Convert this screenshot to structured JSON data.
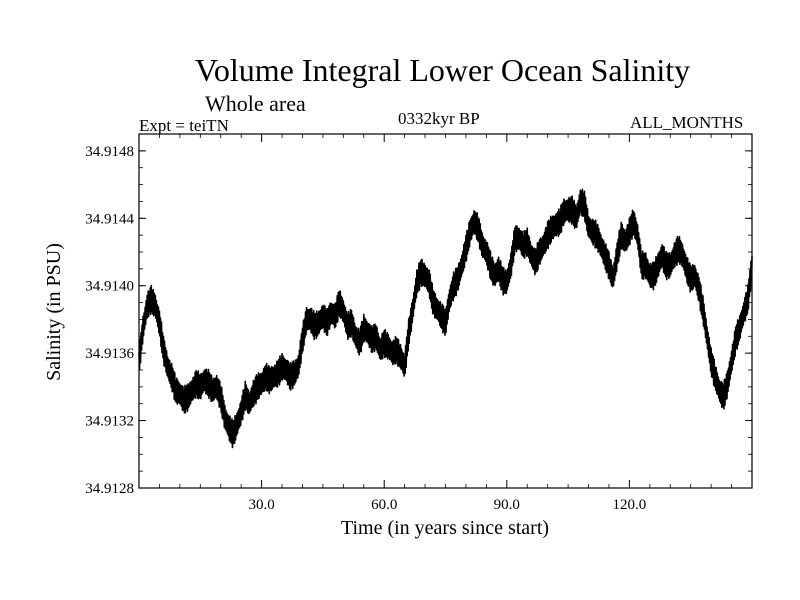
{
  "chart_data": {
    "type": "line",
    "title": "Volume Integral Lower Ocean Salinity",
    "subtitle": "Whole area",
    "left_label": "Expt = teiTN",
    "center_label": "0332kyr BP",
    "right_label": "ALL_MONTHS",
    "xlabel": "Time (in years since start)",
    "ylabel": "Salinity (in PSU)",
    "xlim": [
      0,
      150
    ],
    "ylim": [
      34.9128,
      34.9149
    ],
    "xticks": [
      30,
      60,
      90,
      120
    ],
    "xtick_labels": [
      "30.0",
      "60.0",
      "90.0",
      "120.0"
    ],
    "yticks": [
      34.9128,
      34.9132,
      34.9136,
      34.914,
      34.9144,
      34.9148
    ],
    "ytick_labels": [
      "34.9128",
      "34.9132",
      "34.9136",
      "34.9140",
      "34.9144",
      "34.9148"
    ],
    "grid": false,
    "series": [
      {
        "name": "Salinity",
        "color": "#000000",
        "x": [
          0,
          1,
          2,
          3,
          4,
          5,
          6,
          7,
          8,
          9,
          10,
          11,
          12,
          13,
          14,
          15,
          16,
          17,
          18,
          19,
          20,
          21,
          22,
          23,
          24,
          25,
          26,
          27,
          28,
          29,
          30,
          31,
          32,
          33,
          34,
          35,
          36,
          37,
          38,
          39,
          40,
          41,
          42,
          43,
          44,
          45,
          46,
          47,
          48,
          49,
          50,
          51,
          52,
          53,
          54,
          55,
          56,
          57,
          58,
          59,
          60,
          61,
          62,
          63,
          64,
          65,
          66,
          67,
          68,
          69,
          70,
          71,
          72,
          73,
          74,
          75,
          76,
          77,
          78,
          79,
          80,
          81,
          82,
          83,
          84,
          85,
          86,
          87,
          88,
          89,
          90,
          91,
          92,
          93,
          94,
          95,
          96,
          97,
          98,
          99,
          100,
          101,
          102,
          103,
          104,
          105,
          106,
          107,
          108,
          109,
          110,
          111,
          112,
          113,
          114,
          115,
          116,
          117,
          118,
          119,
          120,
          121,
          122,
          123,
          124,
          125,
          126,
          127,
          128,
          129,
          130,
          131,
          132,
          133,
          134,
          135,
          136,
          137,
          138,
          139,
          140,
          141,
          142,
          143,
          144,
          145,
          146,
          147,
          148,
          149,
          150
        ],
        "values": [
          34.91355,
          34.91375,
          34.91388,
          34.91392,
          34.91388,
          34.91378,
          34.91362,
          34.91352,
          34.91346,
          34.91338,
          34.91336,
          34.91332,
          34.91334,
          34.91338,
          34.91342,
          34.9134,
          34.91344,
          34.91342,
          34.91338,
          34.9134,
          34.91334,
          34.91322,
          34.91316,
          34.91312,
          34.91318,
          34.91325,
          34.91335,
          34.9133,
          34.91336,
          34.9134,
          34.91342,
          34.91346,
          34.91344,
          34.91346,
          34.91348,
          34.91352,
          34.9135,
          34.91346,
          34.91348,
          34.91352,
          34.91368,
          34.9138,
          34.9138,
          34.91376,
          34.91378,
          34.91382,
          34.91378,
          34.91384,
          34.91382,
          34.9139,
          34.91385,
          34.91376,
          34.91378,
          34.9137,
          34.91366,
          34.91375,
          34.91372,
          34.91368,
          34.9137,
          34.91362,
          34.91366,
          34.91364,
          34.9136,
          34.91362,
          34.91358,
          34.91352,
          34.91372,
          34.91386,
          34.91402,
          34.91408,
          34.91406,
          34.91402,
          34.9139,
          34.91386,
          34.91382,
          34.91378,
          34.91392,
          34.914,
          34.91404,
          34.91412,
          34.91422,
          34.91432,
          34.91438,
          34.91434,
          34.91424,
          34.9142,
          34.91412,
          34.91406,
          34.9141,
          34.91403,
          34.91402,
          34.91412,
          34.91428,
          34.91428,
          34.91424,
          34.91426,
          34.91418,
          34.91414,
          34.9142,
          34.91424,
          34.9143,
          34.91434,
          34.91436,
          34.91438,
          34.91444,
          34.91445,
          34.91445,
          34.9144,
          34.9145,
          34.91448,
          34.91435,
          34.91432,
          34.9143,
          34.91424,
          34.91418,
          34.91412,
          34.91404,
          34.91418,
          34.9143,
          34.91426,
          34.91432,
          34.91438,
          34.9143,
          34.91412,
          34.91412,
          34.91406,
          34.91406,
          34.91412,
          34.91418,
          34.91412,
          34.91412,
          34.91418,
          34.91422,
          34.91418,
          34.9141,
          34.91404,
          34.91406,
          34.91398,
          34.91386,
          34.9137,
          34.91355,
          34.91346,
          34.91338,
          34.91334,
          34.91342,
          34.91355,
          34.91368,
          34.91375,
          34.91384,
          34.91392,
          34.91412
        ],
        "variability": "high-frequency sub-annual oscillation of about +/-0.00008 PSU around this trend"
      }
    ]
  }
}
